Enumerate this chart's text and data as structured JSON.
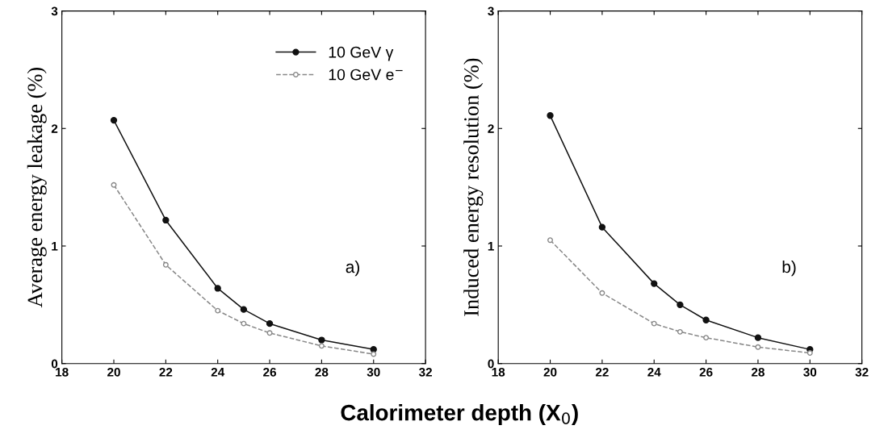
{
  "chart_data": [
    {
      "type": "line",
      "ylabel": "Average energy leakage (%)",
      "xlabel": "Calorimeter depth (X$_{0}$)",
      "x": [
        20,
        22,
        24,
        25,
        26,
        28,
        30
      ],
      "series": [
        {
          "name": "10 GeV γ",
          "color": "#111111",
          "marker": "circle",
          "line_style": "solid",
          "values": [
            2.07,
            1.22,
            0.64,
            0.46,
            0.34,
            0.2,
            0.12
          ]
        },
        {
          "name": "10 GeV e$^{−}$",
          "color": "#888888",
          "marker": "circle",
          "line_style": "dashed",
          "values": [
            1.52,
            0.84,
            0.45,
            0.34,
            0.26,
            0.15,
            0.08
          ]
        }
      ],
      "xlim": [
        18,
        32
      ],
      "xticks": [
        18,
        20,
        22,
        24,
        26,
        28,
        30,
        32
      ],
      "ylim": [
        0,
        3
      ],
      "yticks": [
        0,
        1,
        2,
        3
      ],
      "legend": "top right",
      "grid": false,
      "annotations": [
        "a)"
      ]
    },
    {
      "type": "line",
      "ylabel": "Induced energy resolution (%)",
      "x": [
        20,
        22,
        24,
        25,
        26,
        28,
        30
      ],
      "series": [
        {
          "color": "#111111",
          "marker": "circle",
          "line_style": "solid",
          "values": [
            2.11,
            1.16,
            0.68,
            0.5,
            0.37,
            0.22,
            0.12
          ]
        },
        {
          "color": "#888888",
          "marker": "circle",
          "line_style": "dashed",
          "values": [
            1.05,
            0.6,
            0.34,
            0.27,
            0.22,
            0.14,
            0.09
          ]
        }
      ],
      "xlim": [
        18,
        32
      ],
      "xticks": [
        18,
        20,
        22,
        24,
        26,
        28,
        30,
        32
      ],
      "ylim": [
        0,
        3
      ],
      "yticks": [
        0,
        1,
        2,
        3
      ],
      "legend": false,
      "grid": false,
      "annotations": [
        "b)"
      ]
    }
  ]
}
